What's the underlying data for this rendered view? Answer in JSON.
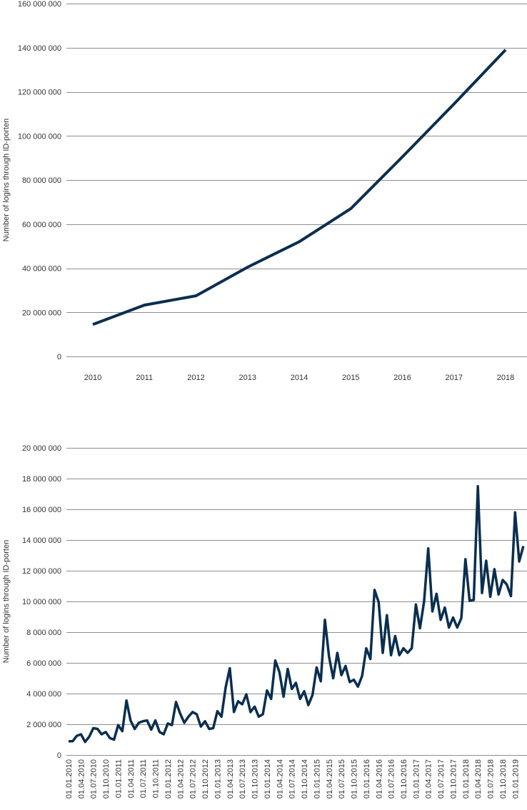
{
  "chart_data": [
    {
      "type": "line",
      "ylabel": "Number of logins through ID-porten",
      "xlabel": "",
      "title": "",
      "ylim": [
        0,
        160000000
      ],
      "yticks": [
        0,
        20000000,
        40000000,
        60000000,
        80000000,
        100000000,
        120000000,
        140000000,
        160000000
      ],
      "ytick_labels": [
        "0",
        "20 000 000",
        "40 000 000",
        "60 000 000",
        "80 000 000",
        "100 000 000",
        "120 000 000",
        "140 000 000",
        "160 000 000"
      ],
      "categories": [
        "2010",
        "2011",
        "2012",
        "2013",
        "2014",
        "2015",
        "2016",
        "2017",
        "2018"
      ],
      "values": [
        14500000,
        23300000,
        27500000,
        40500000,
        52000000,
        67000000,
        90500000,
        114500000,
        139000000
      ],
      "grid": true,
      "line_color": "#0a2e4f"
    },
    {
      "type": "line",
      "ylabel": "Number of logins through ID-porten",
      "xlabel": "",
      "title": "",
      "ylim": [
        0,
        20000000
      ],
      "yticks": [
        0,
        2000000,
        4000000,
        6000000,
        8000000,
        10000000,
        12000000,
        14000000,
        16000000,
        18000000,
        20000000
      ],
      "ytick_labels": [
        "0",
        "2 000 000",
        "4 000 000",
        "6 000 000",
        "8 000 000",
        "10 000 000",
        "12 000 000",
        "14 000 000",
        "16 000 000",
        "18 000 000",
        "20 000 000"
      ],
      "start_year": 2010,
      "x_tick_labels": [
        "01.01.2010",
        "01.04.2010",
        "01.07.2010",
        "01.10.2010",
        "01.01.2011",
        "01.04.2011",
        "01.07.2011",
        "01.10.2011",
        "01.01.2012",
        "01.04.2012",
        "01.07.2012",
        "01.10.2012",
        "01.01.2013",
        "01.04.2013",
        "01.07.2013",
        "01.10.2013",
        "01.01.2014",
        "01.04.2014",
        "01.07.2014",
        "01.10.2014",
        "01.01.2015",
        "01.04.2015",
        "01.07.2015",
        "01.10.2015",
        "01.01.2016",
        "01.04.2016",
        "01.07.2016",
        "01.10.2016",
        "01.01.2017",
        "01.04.2017",
        "01.07.2017",
        "01.10.2017",
        "01.01.2018",
        "01.04.2018",
        "01.07.2018",
        "01.10.2018",
        "01.01.2019"
      ],
      "values": [
        900000,
        900000,
        1250000,
        1350000,
        850000,
        1200000,
        1750000,
        1700000,
        1350000,
        1500000,
        1100000,
        1000000,
        1950000,
        1550000,
        3550000,
        2250000,
        1700000,
        2100000,
        2200000,
        2250000,
        1650000,
        2250000,
        1500000,
        1350000,
        2050000,
        1950000,
        3450000,
        2700000,
        2100000,
        2500000,
        2800000,
        2650000,
        1850000,
        2200000,
        1700000,
        1750000,
        2850000,
        2500000,
        4400000,
        5650000,
        2800000,
        3500000,
        3300000,
        3950000,
        2800000,
        3150000,
        2500000,
        2650000,
        4200000,
        3650000,
        6150000,
        5400000,
        3800000,
        5600000,
        4300000,
        4700000,
        3650000,
        4150000,
        3250000,
        3900000,
        5700000,
        4800000,
        8800000,
        6400000,
        5000000,
        6650000,
        5200000,
        5800000,
        4750000,
        4900000,
        4450000,
        5150000,
        6950000,
        6250000,
        10750000,
        9950000,
        6650000,
        9100000,
        6500000,
        7750000,
        6500000,
        6950000,
        6650000,
        6950000,
        9800000,
        8250000,
        10000000,
        13450000,
        9350000,
        10500000,
        8800000,
        9600000,
        8300000,
        8950000,
        8300000,
        8900000,
        12750000,
        10050000,
        10100000,
        17500000,
        10550000,
        12650000,
        10300000,
        12100000,
        10450000,
        11400000,
        11100000,
        10350000,
        15800000,
        12600000,
        13600000
      ],
      "grid": true,
      "line_color": "#0a2e4f"
    }
  ]
}
